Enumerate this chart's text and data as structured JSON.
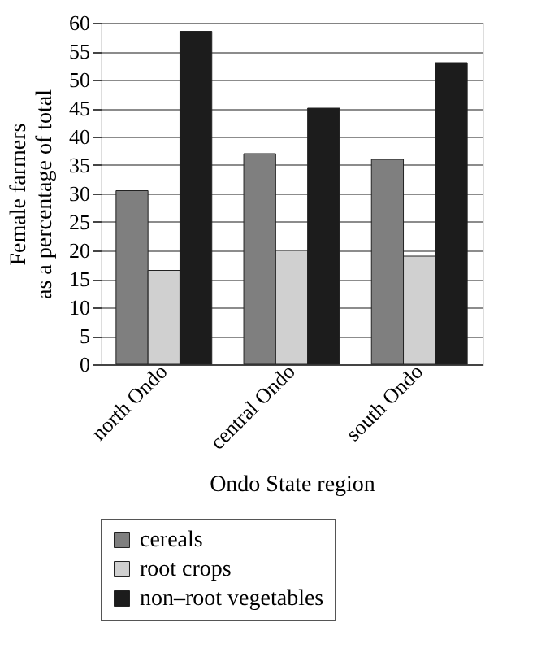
{
  "chart_data": {
    "type": "bar",
    "xlabel": "Ondo State region",
    "ylabel": "Female farmers\nas a percentage of total",
    "categories": [
      "north Ondo",
      "central Ondo",
      "south Ondo"
    ],
    "series": [
      {
        "name": "cereals",
        "color": "#7f7f7f",
        "values": [
          30.5,
          37,
          36
        ]
      },
      {
        "name": "root crops",
        "color": "#d0d0d0",
        "values": [
          16.5,
          20,
          19
        ]
      },
      {
        "name": "non–root vegetables",
        "color": "#1c1c1c",
        "values": [
          58.5,
          45,
          53
        ]
      }
    ],
    "ylim": [
      0,
      60
    ],
    "yticks": [
      0,
      5,
      10,
      15,
      20,
      25,
      30,
      35,
      40,
      45,
      50,
      55,
      60
    ],
    "grid": "y",
    "legend": "bottom"
  }
}
